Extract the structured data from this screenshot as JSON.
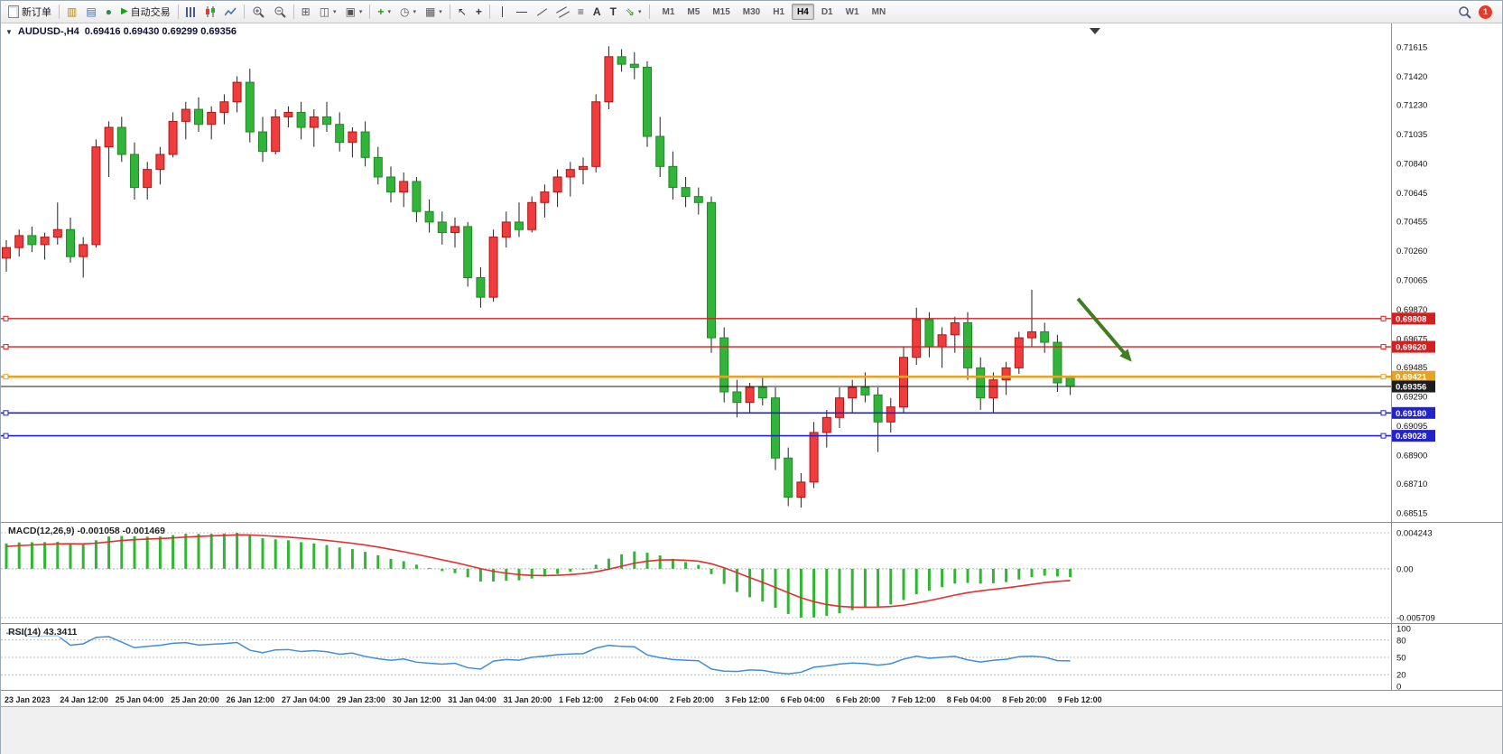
{
  "toolbar": {
    "new_order_label": "新订单",
    "auto_trading_label": "自动交易",
    "text_tool_label": "A",
    "label_tool_label": "T",
    "timeframes": [
      "M1",
      "M5",
      "M15",
      "M30",
      "H1",
      "H4",
      "D1",
      "W1",
      "MN"
    ],
    "active_timeframe": "H4",
    "notification_count": "1"
  },
  "chart_header": {
    "symbol_period": "AUDUSD-,H4",
    "ohlc": "0.69416 0.69430 0.69299 0.69356"
  },
  "price_axis_labels": [
    "0.71615",
    "0.71420",
    "0.71230",
    "0.71035",
    "0.70840",
    "0.70645",
    "0.70455",
    "0.70260",
    "0.70065",
    "0.69870",
    "0.69675",
    "0.69485",
    "0.69290",
    "0.69095",
    "0.68900",
    "0.68710",
    "0.68515"
  ],
  "hlines": [
    {
      "price": 0.69808,
      "label": "0.69808",
      "color": "#d22020",
      "width": 1.4,
      "current": false
    },
    {
      "price": 0.6962,
      "label": "0.69620",
      "color": "#d22020",
      "width": 1.4,
      "current": false
    },
    {
      "price": 0.69421,
      "label": "0.69421",
      "color": "#e8a221",
      "width": 2.6,
      "current": false
    },
    {
      "price": 0.69356,
      "label": "0.69356",
      "color": "#1c1c1c",
      "width": 1.0,
      "current": true
    },
    {
      "price": 0.6918,
      "label": "0.69180",
      "color": "#2323cc",
      "width": 1.6,
      "current": false
    },
    {
      "price": 0.69028,
      "label": "0.69028",
      "color": "#2323cc",
      "width": 1.6,
      "current": false
    }
  ],
  "time_axis": [
    "23 Jan 2023",
    "24 Jan 12:00",
    "25 Jan 04:00",
    "25 Jan 20:00",
    "26 Jan 12:00",
    "27 Jan 04:00",
    "29 Jan 23:00",
    "30 Jan 12:00",
    "31 Jan 04:00",
    "31 Jan 20:00",
    "1 Feb 12:00",
    "2 Feb 04:00",
    "2 Feb 20:00",
    "3 Feb 12:00",
    "6 Feb 04:00",
    "6 Feb 20:00",
    "7 Feb 12:00",
    "8 Feb 04:00",
    "8 Feb 20:00",
    "9 Feb 12:00"
  ],
  "macd": {
    "label": "MACD(12,26,9) -0.001058 -0.001469",
    "axis_max": "0.004243",
    "axis_zero": "0.00",
    "axis_min": "-0.005709",
    "histogram_color": "#2fb732",
    "signal_color": "#e03030"
  },
  "rsi": {
    "label": "RSI(14) 43.3411",
    "axis_labels": [
      "100",
      "80",
      "50",
      "20",
      "0"
    ],
    "axis_values": [
      100,
      80,
      50,
      20,
      0
    ],
    "levels": [
      80,
      50,
      20
    ],
    "line_color": "#3e8fd4"
  },
  "annotations": {
    "arrow": {
      "from_bar": 83.6,
      "from_price": 0.6994,
      "to_bar": 87.8,
      "to_price": 0.6952,
      "color": "#3f7d20"
    }
  },
  "chart_data": {
    "type": "candlestick",
    "symbol": "AUDUSD",
    "period": "H4",
    "title": "AUDUSD-,H4",
    "ylim": [
      0.68515,
      0.71615
    ],
    "up_color": "#ef3c3c",
    "up_edge": "#b31515",
    "down_color": "#32b43a",
    "down_edge": "#1d8a24",
    "warmup_closes": [
      0.689,
      0.6895,
      0.69,
      0.6895,
      0.6905,
      0.691,
      0.6908,
      0.6915,
      0.692,
      0.6925,
      0.692,
      0.693,
      0.694,
      0.6945,
      0.695,
      0.6948,
      0.6955,
      0.696,
      0.6965,
      0.697,
      0.6968,
      0.6975,
      0.698,
      0.699,
      0.6995,
      0.7,
      0.7005,
      0.701,
      0.7008,
      0.7015
    ],
    "candles": [
      [
        0.7021,
        0.7033,
        0.7012,
        0.7028
      ],
      [
        0.7028,
        0.704,
        0.7022,
        0.7036
      ],
      [
        0.7036,
        0.7042,
        0.7025,
        0.703
      ],
      [
        0.703,
        0.7038,
        0.702,
        0.7035
      ],
      [
        0.7035,
        0.7058,
        0.703,
        0.704
      ],
      [
        0.704,
        0.7048,
        0.7018,
        0.7022
      ],
      [
        0.7022,
        0.7035,
        0.7008,
        0.703
      ],
      [
        0.703,
        0.71,
        0.7028,
        0.7095
      ],
      [
        0.7095,
        0.7112,
        0.7075,
        0.7108
      ],
      [
        0.7108,
        0.7115,
        0.7085,
        0.709
      ],
      [
        0.709,
        0.7098,
        0.706,
        0.7068
      ],
      [
        0.7068,
        0.7085,
        0.706,
        0.708
      ],
      [
        0.708,
        0.7095,
        0.707,
        0.709
      ],
      [
        0.709,
        0.7118,
        0.7088,
        0.7112
      ],
      [
        0.7112,
        0.7125,
        0.71,
        0.712
      ],
      [
        0.712,
        0.7128,
        0.7105,
        0.711
      ],
      [
        0.711,
        0.7122,
        0.71,
        0.7118
      ],
      [
        0.7118,
        0.713,
        0.711,
        0.7125
      ],
      [
        0.7125,
        0.7142,
        0.7118,
        0.7138
      ],
      [
        0.7138,
        0.7147,
        0.7098,
        0.7105
      ],
      [
        0.7105,
        0.7115,
        0.7085,
        0.7092
      ],
      [
        0.7092,
        0.712,
        0.709,
        0.7115
      ],
      [
        0.7115,
        0.7122,
        0.7108,
        0.7118
      ],
      [
        0.7118,
        0.7125,
        0.71,
        0.7108
      ],
      [
        0.7108,
        0.712,
        0.7095,
        0.7115
      ],
      [
        0.7115,
        0.7125,
        0.7105,
        0.711
      ],
      [
        0.711,
        0.7118,
        0.7092,
        0.7098
      ],
      [
        0.7098,
        0.7108,
        0.7088,
        0.7105
      ],
      [
        0.7105,
        0.7112,
        0.7082,
        0.7088
      ],
      [
        0.7088,
        0.7095,
        0.707,
        0.7075
      ],
      [
        0.7075,
        0.7082,
        0.7058,
        0.7065
      ],
      [
        0.7065,
        0.7078,
        0.7055,
        0.7072
      ],
      [
        0.7072,
        0.7075,
        0.7045,
        0.7052
      ],
      [
        0.7052,
        0.706,
        0.7038,
        0.7045
      ],
      [
        0.7045,
        0.7052,
        0.703,
        0.7038
      ],
      [
        0.7038,
        0.7048,
        0.7028,
        0.7042
      ],
      [
        0.7042,
        0.7045,
        0.7002,
        0.7008
      ],
      [
        0.7008,
        0.7015,
        0.6988,
        0.6995
      ],
      [
        0.6995,
        0.704,
        0.6992,
        0.7035
      ],
      [
        0.7035,
        0.7052,
        0.7028,
        0.7045
      ],
      [
        0.7045,
        0.7058,
        0.7035,
        0.704
      ],
      [
        0.704,
        0.7062,
        0.7038,
        0.7058
      ],
      [
        0.7058,
        0.707,
        0.7048,
        0.7065
      ],
      [
        0.7065,
        0.708,
        0.7055,
        0.7075
      ],
      [
        0.7075,
        0.7085,
        0.7062,
        0.708
      ],
      [
        0.708,
        0.7088,
        0.707,
        0.7082
      ],
      [
        0.7082,
        0.713,
        0.7078,
        0.7125
      ],
      [
        0.7125,
        0.7162,
        0.712,
        0.7155
      ],
      [
        0.7155,
        0.716,
        0.7145,
        0.715
      ],
      [
        0.715,
        0.7158,
        0.714,
        0.7148
      ],
      [
        0.7148,
        0.7152,
        0.7095,
        0.7102
      ],
      [
        0.7102,
        0.7115,
        0.7075,
        0.7082
      ],
      [
        0.7082,
        0.7092,
        0.706,
        0.7068
      ],
      [
        0.7068,
        0.7075,
        0.7055,
        0.7062
      ],
      [
        0.7062,
        0.7068,
        0.705,
        0.7058
      ],
      [
        0.7058,
        0.7062,
        0.6958,
        0.6968
      ],
      [
        0.6968,
        0.6975,
        0.6925,
        0.6932
      ],
      [
        0.6932,
        0.694,
        0.6915,
        0.6925
      ],
      [
        0.6925,
        0.6938,
        0.6918,
        0.6935
      ],
      [
        0.6935,
        0.6942,
        0.6923,
        0.6928
      ],
      [
        0.6928,
        0.6935,
        0.688,
        0.6888
      ],
      [
        0.6888,
        0.6895,
        0.6856,
        0.6862
      ],
      [
        0.6862,
        0.6878,
        0.6855,
        0.6872
      ],
      [
        0.6872,
        0.6912,
        0.6868,
        0.6905
      ],
      [
        0.6905,
        0.692,
        0.6895,
        0.6915
      ],
      [
        0.6915,
        0.6935,
        0.6908,
        0.6928
      ],
      [
        0.6928,
        0.694,
        0.6918,
        0.6935
      ],
      [
        0.6935,
        0.6945,
        0.6925,
        0.693
      ],
      [
        0.693,
        0.6935,
        0.6892,
        0.6912
      ],
      [
        0.6912,
        0.6928,
        0.6905,
        0.6922
      ],
      [
        0.6922,
        0.6962,
        0.6918,
        0.6955
      ],
      [
        0.6955,
        0.6988,
        0.695,
        0.698
      ],
      [
        0.698,
        0.6985,
        0.6955,
        0.6962
      ],
      [
        0.6962,
        0.6975,
        0.6948,
        0.697
      ],
      [
        0.697,
        0.6982,
        0.6958,
        0.6978
      ],
      [
        0.6978,
        0.6985,
        0.694,
        0.6948
      ],
      [
        0.6948,
        0.6955,
        0.692,
        0.6928
      ],
      [
        0.6928,
        0.6945,
        0.6918,
        0.694
      ],
      [
        0.694,
        0.6952,
        0.693,
        0.6948
      ],
      [
        0.6948,
        0.6972,
        0.6944,
        0.6968
      ],
      [
        0.6968,
        0.7,
        0.6962,
        0.6972
      ],
      [
        0.6972,
        0.6978,
        0.6958,
        0.6965
      ],
      [
        0.6965,
        0.697,
        0.6932,
        0.6938
      ],
      [
        0.69416,
        0.6943,
        0.69299,
        0.69356
      ]
    ]
  }
}
